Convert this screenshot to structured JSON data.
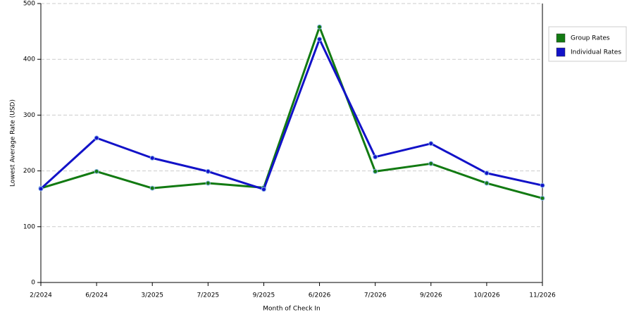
{
  "chart_data": {
    "type": "line",
    "x_label": "Month of Check In",
    "y_label": "Lowest Average Rate (USD)",
    "categories": [
      "2/2024",
      "6/2024",
      "3/2025",
      "7/2025",
      "9/2025",
      "6/2026",
      "7/2026",
      "9/2026",
      "10/2026",
      "11/2026"
    ],
    "series": [
      {
        "name": "Group Rates",
        "color": "#127a12",
        "values": [
          169,
          199,
          169,
          178,
          170,
          458,
          199,
          213,
          178,
          151
        ]
      },
      {
        "name": "Individual Rates",
        "color": "#1212c8",
        "values": [
          168,
          259,
          223,
          199,
          167,
          436,
          225,
          249,
          196,
          174
        ]
      }
    ],
    "ylim": [
      0,
      500
    ],
    "yticks": [
      0,
      100,
      200,
      300,
      400,
      500
    ],
    "grid": true,
    "legend": "right"
  }
}
